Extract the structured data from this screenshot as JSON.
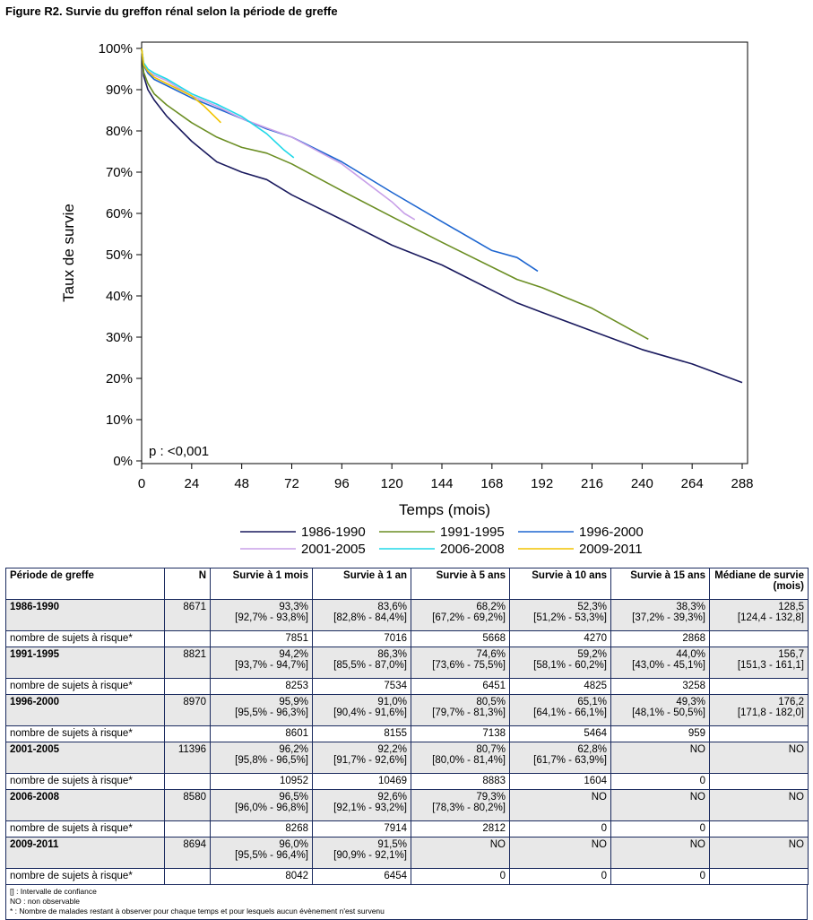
{
  "figure_title": "Figure R2. Survie du greffon rénal selon la période de greffe",
  "chart_data": {
    "type": "line",
    "title": "",
    "xlabel": "Temps (mois)",
    "ylabel": "Taux de survie",
    "xlim": [
      0,
      288
    ],
    "ylim": [
      0,
      100
    ],
    "x_ticks": [
      0,
      24,
      48,
      72,
      96,
      120,
      144,
      168,
      192,
      216,
      240,
      264,
      288
    ],
    "x_tick_labels": [
      "0",
      "24",
      "48",
      "72",
      "96",
      "120",
      "144",
      "168",
      "192",
      "216",
      "240",
      "264",
      "288"
    ],
    "y_ticks": [
      0,
      10,
      20,
      30,
      40,
      50,
      60,
      70,
      80,
      90,
      100
    ],
    "y_tick_labels": [
      "0%",
      "10%",
      "20%",
      "30%",
      "40%",
      "50%",
      "60%",
      "70%",
      "80%",
      "90%",
      "100%"
    ],
    "annotation": "p : <0,001",
    "legend_position": "bottom",
    "grid": false,
    "series": [
      {
        "name": "1986-1990",
        "color": "#1a1a5e",
        "points": [
          [
            0,
            100
          ],
          [
            1,
            93.3
          ],
          [
            3,
            90
          ],
          [
            6,
            87.5
          ],
          [
            12,
            83.6
          ],
          [
            24,
            77.5
          ],
          [
            36,
            72.5
          ],
          [
            48,
            70
          ],
          [
            60,
            68.2
          ],
          [
            72,
            64.5
          ],
          [
            96,
            58.5
          ],
          [
            120,
            52.3
          ],
          [
            144,
            47.5
          ],
          [
            180,
            38.3
          ],
          [
            192,
            36
          ],
          [
            216,
            31.5
          ],
          [
            240,
            27
          ],
          [
            264,
            23.5
          ],
          [
            288,
            19
          ]
        ]
      },
      {
        "name": "1991-1995",
        "color": "#6b8e23",
        "points": [
          [
            0,
            100
          ],
          [
            1,
            94.2
          ],
          [
            3,
            91.5
          ],
          [
            6,
            89
          ],
          [
            12,
            86.3
          ],
          [
            24,
            82
          ],
          [
            36,
            78.5
          ],
          [
            48,
            76
          ],
          [
            60,
            74.6
          ],
          [
            72,
            72
          ],
          [
            96,
            65.5
          ],
          [
            120,
            59.2
          ],
          [
            144,
            53
          ],
          [
            180,
            44
          ],
          [
            192,
            42
          ],
          [
            216,
            37
          ],
          [
            243,
            29.5
          ]
        ]
      },
      {
        "name": "1996-2000",
        "color": "#1e66d0",
        "points": [
          [
            0,
            100
          ],
          [
            1,
            95.9
          ],
          [
            3,
            94
          ],
          [
            6,
            92.5
          ],
          [
            12,
            91
          ],
          [
            24,
            88
          ],
          [
            36,
            85.5
          ],
          [
            48,
            83
          ],
          [
            60,
            80.5
          ],
          [
            72,
            78.5
          ],
          [
            96,
            72.5
          ],
          [
            120,
            65.1
          ],
          [
            144,
            58
          ],
          [
            168,
            51
          ],
          [
            180,
            49.3
          ],
          [
            190,
            46
          ]
        ]
      },
      {
        "name": "2001-2005",
        "color": "#c8a0e8",
        "points": [
          [
            0,
            100
          ],
          [
            1,
            96.2
          ],
          [
            3,
            94.5
          ],
          [
            6,
            93.5
          ],
          [
            12,
            92.2
          ],
          [
            24,
            88.5
          ],
          [
            36,
            86
          ],
          [
            48,
            83
          ],
          [
            60,
            80.7
          ],
          [
            72,
            78.5
          ],
          [
            96,
            72
          ],
          [
            120,
            62.8
          ],
          [
            126,
            60
          ],
          [
            131,
            58.5
          ]
        ]
      },
      {
        "name": "2006-2008",
        "color": "#20d8e8",
        "points": [
          [
            0,
            100
          ],
          [
            1,
            96.5
          ],
          [
            3,
            95
          ],
          [
            6,
            94
          ],
          [
            12,
            92.6
          ],
          [
            24,
            89
          ],
          [
            36,
            86.5
          ],
          [
            48,
            83.5
          ],
          [
            60,
            79.3
          ],
          [
            68,
            75.5
          ],
          [
            73,
            73.5
          ]
        ]
      },
      {
        "name": "2009-2011",
        "color": "#f2c400",
        "points": [
          [
            0,
            100
          ],
          [
            1,
            96
          ],
          [
            3,
            94.5
          ],
          [
            6,
            93
          ],
          [
            12,
            91.5
          ],
          [
            18,
            90
          ],
          [
            24,
            88.5
          ],
          [
            30,
            86
          ],
          [
            36,
            83
          ],
          [
            38,
            82
          ]
        ]
      }
    ]
  },
  "table": {
    "headers": [
      "Période de greffe",
      "N",
      "Survie à 1 mois",
      "Survie à 1 an",
      "Survie à 5 ans",
      "Survie à 10 ans",
      "Survie à 15 ans",
      "Médiane de survie (mois)"
    ],
    "groups": [
      {
        "period": "1986-1990",
        "n": "8671",
        "values": [
          "93,3%",
          "83,6%",
          "68,2%",
          "52,3%",
          "38,3%",
          "128,5"
        ],
        "ci": [
          "[92,7% - 93,8%]",
          "[82,8% - 84,4%]",
          "[67,2% - 69,2%]",
          "[51,2% - 53,3%]",
          "[37,2% - 39,3%]",
          "[124,4 - 132,8]"
        ],
        "risk_label": "nombre de sujets à risque*",
        "risk": [
          "7851",
          "7016",
          "5668",
          "4270",
          "2868",
          ""
        ]
      },
      {
        "period": "1991-1995",
        "n": "8821",
        "values": [
          "94,2%",
          "86,3%",
          "74,6%",
          "59,2%",
          "44,0%",
          "156,7"
        ],
        "ci": [
          "[93,7% - 94,7%]",
          "[85,5% - 87,0%]",
          "[73,6% - 75,5%]",
          "[58,1% - 60,2%]",
          "[43,0% - 45,1%]",
          "[151,3 - 161,1]"
        ],
        "risk_label": "nombre de sujets à risque*",
        "risk": [
          "8253",
          "7534",
          "6451",
          "4825",
          "3258",
          ""
        ]
      },
      {
        "period": "1996-2000",
        "n": "8970",
        "values": [
          "95,9%",
          "91,0%",
          "80,5%",
          "65,1%",
          "49,3%",
          "176,2"
        ],
        "ci": [
          "[95,5% - 96,3%]",
          "[90,4% - 91,6%]",
          "[79,7% - 81,3%]",
          "[64,1% - 66,1%]",
          "[48,1% - 50,5%]",
          "[171,8 - 182,0]"
        ],
        "risk_label": "nombre de sujets à risque*",
        "risk": [
          "8601",
          "8155",
          "7138",
          "5464",
          "959",
          ""
        ]
      },
      {
        "period": "2001-2005",
        "n": "11396",
        "values": [
          "96,2%",
          "92,2%",
          "80,7%",
          "62,8%",
          "NO",
          "NO"
        ],
        "ci": [
          "[95,8% - 96,5%]",
          "[91,7% - 92,6%]",
          "[80,0% - 81,4%]",
          "[61,7% - 63,9%]",
          "",
          ""
        ],
        "risk_label": "nombre de sujets à risque*",
        "risk": [
          "10952",
          "10469",
          "8883",
          "1604",
          "0",
          ""
        ]
      },
      {
        "period": "2006-2008",
        "n": "8580",
        "values": [
          "96,5%",
          "92,6%",
          "79,3%",
          "NO",
          "NO",
          "NO"
        ],
        "ci": [
          "[96,0% - 96,8%]",
          "[92,1% - 93,2%]",
          "[78,3% - 80,2%]",
          "",
          "",
          ""
        ],
        "risk_label": "nombre de sujets à risque*",
        "risk": [
          "8268",
          "7914",
          "2812",
          "0",
          "0",
          ""
        ]
      },
      {
        "period": "2009-2011",
        "n": "8694",
        "values": [
          "96,0%",
          "91,5%",
          "NO",
          "NO",
          "NO",
          "NO"
        ],
        "ci": [
          "[95,5% - 96,4%]",
          "[90,9% - 92,1%]",
          "",
          "",
          "",
          ""
        ],
        "risk_label": "nombre de sujets à risque*",
        "risk": [
          "8042",
          "6454",
          "0",
          "0",
          "0",
          ""
        ]
      }
    ]
  },
  "notes": [
    "[] : Intervalle de confiance",
    "NO : non observable",
    "* : Nombre de malades restant à observer pour chaque temps et pour lesquels aucun évènement n'est survenu"
  ]
}
